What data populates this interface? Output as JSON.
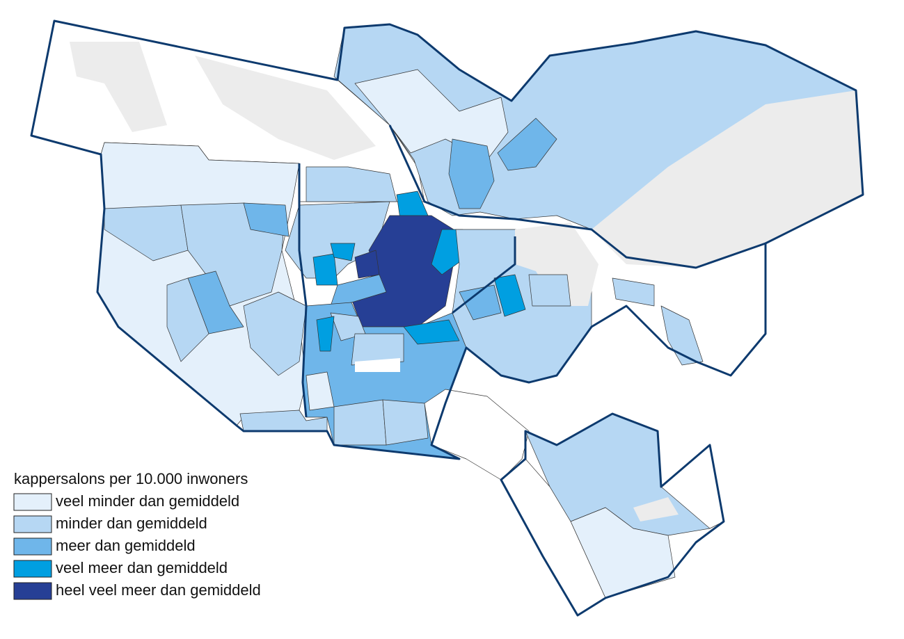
{
  "legend": {
    "title": "kappersalons per 10.000 inwoners",
    "items": [
      {
        "label": "veel minder dan gemiddeld",
        "color": "#e4f0fb"
      },
      {
        "label": "minder dan gemiddeld",
        "color": "#b6d7f3"
      },
      {
        "label": "meer dan gemiddeld",
        "color": "#6fb6ea"
      },
      {
        "label": "veel meer dan gemiddeld",
        "color": "#009fe1"
      },
      {
        "label": "heel veel meer dan gemiddeld",
        "color": "#263f95"
      }
    ]
  }
}
